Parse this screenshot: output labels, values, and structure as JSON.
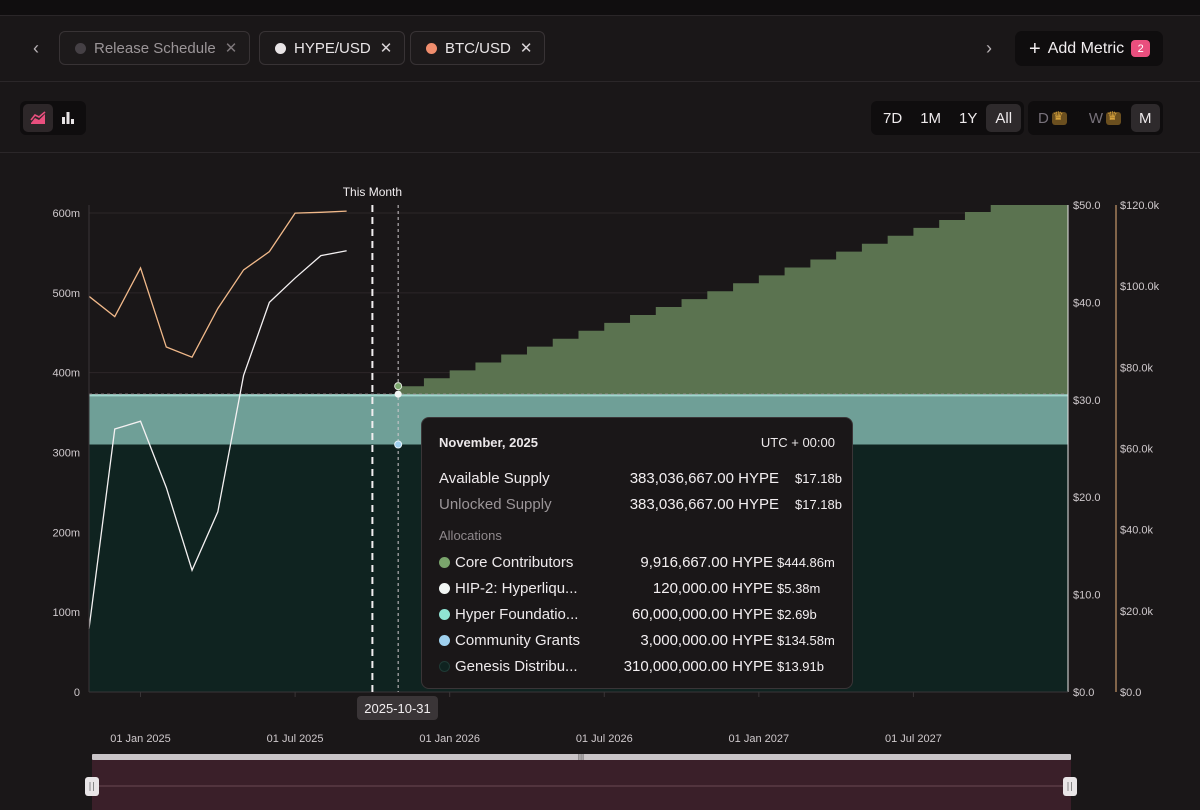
{
  "tabs": [
    {
      "label": "Release Schedule",
      "color": "#454045",
      "active": false
    },
    {
      "label": "HYPE/USD",
      "color": "#e8e4e6",
      "active": true
    },
    {
      "label": "BTC/USD",
      "color": "#f08d6d",
      "active": true
    }
  ],
  "add_metric": {
    "label": "Add Metric",
    "count": "2"
  },
  "nav": {
    "prev": "‹",
    "next": "›"
  },
  "chart_type_toggle": {
    "options": [
      "area-chart-icon",
      "bar-chart-icon"
    ],
    "active": "area-chart-icon"
  },
  "ranges": {
    "options": [
      "7D",
      "1M",
      "1Y",
      "All"
    ],
    "active": "All"
  },
  "intervals": {
    "options": [
      "D",
      "W",
      "M"
    ],
    "active": "M",
    "premium": [
      "D",
      "W"
    ]
  },
  "marker": {
    "this_month_label": "This Month"
  },
  "hover_date": "2025-10-31",
  "tooltip": {
    "date": "November, 2025",
    "timezone": "UTC + 00:00",
    "rows": [
      {
        "label": "Available Supply",
        "amount": "383,036,667.00 HYPE",
        "usd": "$17.18b"
      },
      {
        "label": "Unlocked Supply",
        "amount": "383,036,667.00 HYPE",
        "usd": "$17.18b"
      }
    ],
    "allocations_title": "Allocations",
    "allocations": [
      {
        "label": "Core Contributors",
        "amount": "9,916,667.00 HYPE",
        "usd": "$444.86m",
        "color": "#7aa56c"
      },
      {
        "label": "HIP-2: Hyperliqu...",
        "amount": "120,000.00 HYPE",
        "usd": "$5.38m",
        "color": "#f2f6f4"
      },
      {
        "label": "Hyper Foundatio...",
        "amount": "60,000,000.00 HYPE",
        "usd": "$2.69b",
        "color": "#8fe3d3"
      },
      {
        "label": "Community Grants",
        "amount": "3,000,000.00 HYPE",
        "usd": "$134.58m",
        "color": "#9fd0ee"
      },
      {
        "label": "Genesis Distribu...",
        "amount": "310,000,000.00 HYPE",
        "usd": "$13.91b",
        "color": "#0f2320"
      }
    ]
  },
  "chart_data": {
    "type": "area",
    "x_ticks": [
      "01 Jan 2025",
      "01 Jul 2025",
      "01 Jan 2026",
      "01 Jul 2026",
      "01 Jan 2027",
      "01 Jul 2027"
    ],
    "x_range_months": [
      "2024-11",
      "2027-12"
    ],
    "y_left": {
      "ticks": [
        "0",
        "100m",
        "200m",
        "300m",
        "400m",
        "500m",
        "600m"
      ],
      "range": [
        0,
        610
      ]
    },
    "y_right_hype": {
      "ticks": [
        "$0.0",
        "$10.0",
        "$20.0",
        "$30.0",
        "$40.0",
        "$50.0"
      ],
      "range": [
        0,
        50
      ]
    },
    "y_right_btc": {
      "ticks": [
        "$0.0",
        "$20.0k",
        "$40.0k",
        "$60.0k",
        "$80.0k",
        "$100.0k",
        "$120.0k"
      ],
      "range": [
        0,
        120
      ]
    },
    "colors": {
      "genesis": "#0f2320",
      "foundation": "#6f9f97",
      "core": "#5b7350",
      "hype_line": "#f4f1f2",
      "btc_line": "#f1b98a"
    },
    "supply_series": {
      "genesis_m": 310,
      "foundation_m": 60,
      "other_m": 3.12,
      "core_start_month": "2025-11",
      "core_monthly_step_m": 9.916667,
      "core_end_month": "2027-11"
    },
    "hype_usd": {
      "months": [
        "2024-11",
        "2024-12",
        "2025-01",
        "2025-02",
        "2025-03",
        "2025-04",
        "2025-05",
        "2025-06",
        "2025-07",
        "2025-08",
        "2025-09"
      ],
      "values": [
        6.5,
        27.0,
        27.8,
        21.0,
        12.5,
        18.5,
        32.5,
        40.0,
        42.5,
        44.8,
        45.3
      ]
    },
    "btc_usd": {
      "months": [
        "2024-11",
        "2024-12",
        "2025-01",
        "2025-02",
        "2025-03",
        "2025-04",
        "2025-05",
        "2025-06",
        "2025-07",
        "2025-08",
        "2025-09"
      ],
      "values": [
        97.5,
        92.5,
        104.5,
        85.0,
        82.5,
        94.5,
        104.0,
        108.5,
        118.0,
        118.2,
        118.5
      ]
    },
    "this_month": "2025-09",
    "hover_month": "2025-11"
  }
}
